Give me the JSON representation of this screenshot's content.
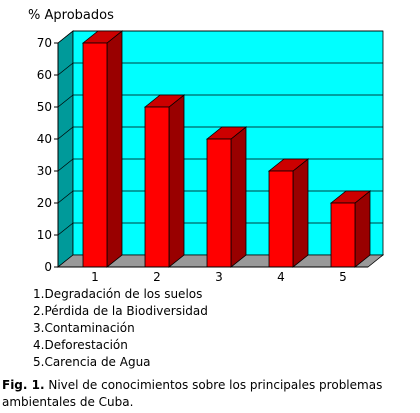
{
  "chart_data": {
    "type": "bar",
    "ylabel": "% Aprobados",
    "categories": [
      "1",
      "2",
      "3",
      "4",
      "5"
    ],
    "values": [
      70,
      50,
      40,
      30,
      20
    ],
    "ylim": [
      0,
      70
    ],
    "yticks": [
      0,
      10,
      20,
      30,
      40,
      50,
      60,
      70
    ],
    "grid": true,
    "three_d": true,
    "colors": {
      "wall": "#00ffff",
      "side_wall": "#009a9a",
      "floor": "#999999",
      "bar_front": "#ff0000",
      "bar_side": "#990000",
      "bar_top": "#cc0000"
    }
  },
  "legend": [
    "1.Degradación de los suelos",
    "2.Pérdida de la Biodiversidad",
    "3.Contaminación",
    "4.Deforestación",
    "5.Carencia de Agua"
  ],
  "caption": {
    "label": "Fig. 1.",
    "text": " Nivel de conocimientos sobre los principales problemas ambientales de Cuba."
  }
}
